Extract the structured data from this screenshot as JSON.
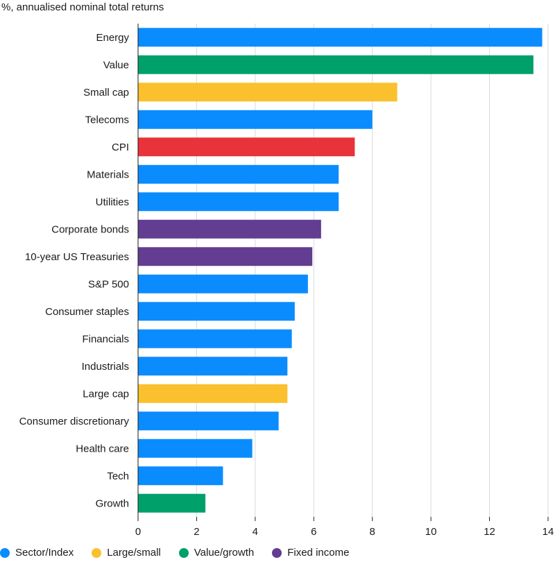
{
  "chart_data": {
    "type": "bar",
    "orientation": "horizontal",
    "subtitle": "%, annualised nominal total returns",
    "categories": [
      "Energy",
      "Value",
      "Small cap",
      "Telecoms",
      "CPI",
      "Materials",
      "Utilities",
      "Corporate bonds",
      "10-year US Treasuries",
      "S&P 500",
      "Consumer staples",
      "Financials",
      "Industrials",
      "Large cap",
      "Consumer discretionary",
      "Health care",
      "Tech",
      "Growth"
    ],
    "values": [
      13.8,
      13.5,
      8.85,
      8.0,
      7.4,
      6.85,
      6.85,
      6.25,
      5.95,
      5.8,
      5.35,
      5.25,
      5.1,
      5.1,
      4.8,
      3.9,
      2.9,
      2.3
    ],
    "groups": [
      "Sector/Index",
      "Value/growth",
      "Large/small",
      "Sector/Index",
      "CPI",
      "Sector/Index",
      "Sector/Index",
      "Fixed income",
      "Fixed income",
      "Sector/Index",
      "Sector/Index",
      "Sector/Index",
      "Sector/Index",
      "Large/small",
      "Sector/Index",
      "Sector/Index",
      "Sector/Index",
      "Value/growth"
    ],
    "xlim": [
      0,
      14
    ],
    "xticks": [
      0,
      2,
      4,
      6,
      8,
      10,
      12,
      14
    ],
    "grid": true,
    "legend_position": "bottom-left",
    "colors": {
      "Sector/Index": "#0a8cff",
      "Large/small": "#fbc02d",
      "Value/growth": "#00a06b",
      "Fixed income": "#623d91",
      "CPI": "#e8333a"
    },
    "legend": [
      "Sector/Index",
      "Large/small",
      "Value/growth",
      "Fixed income"
    ]
  }
}
